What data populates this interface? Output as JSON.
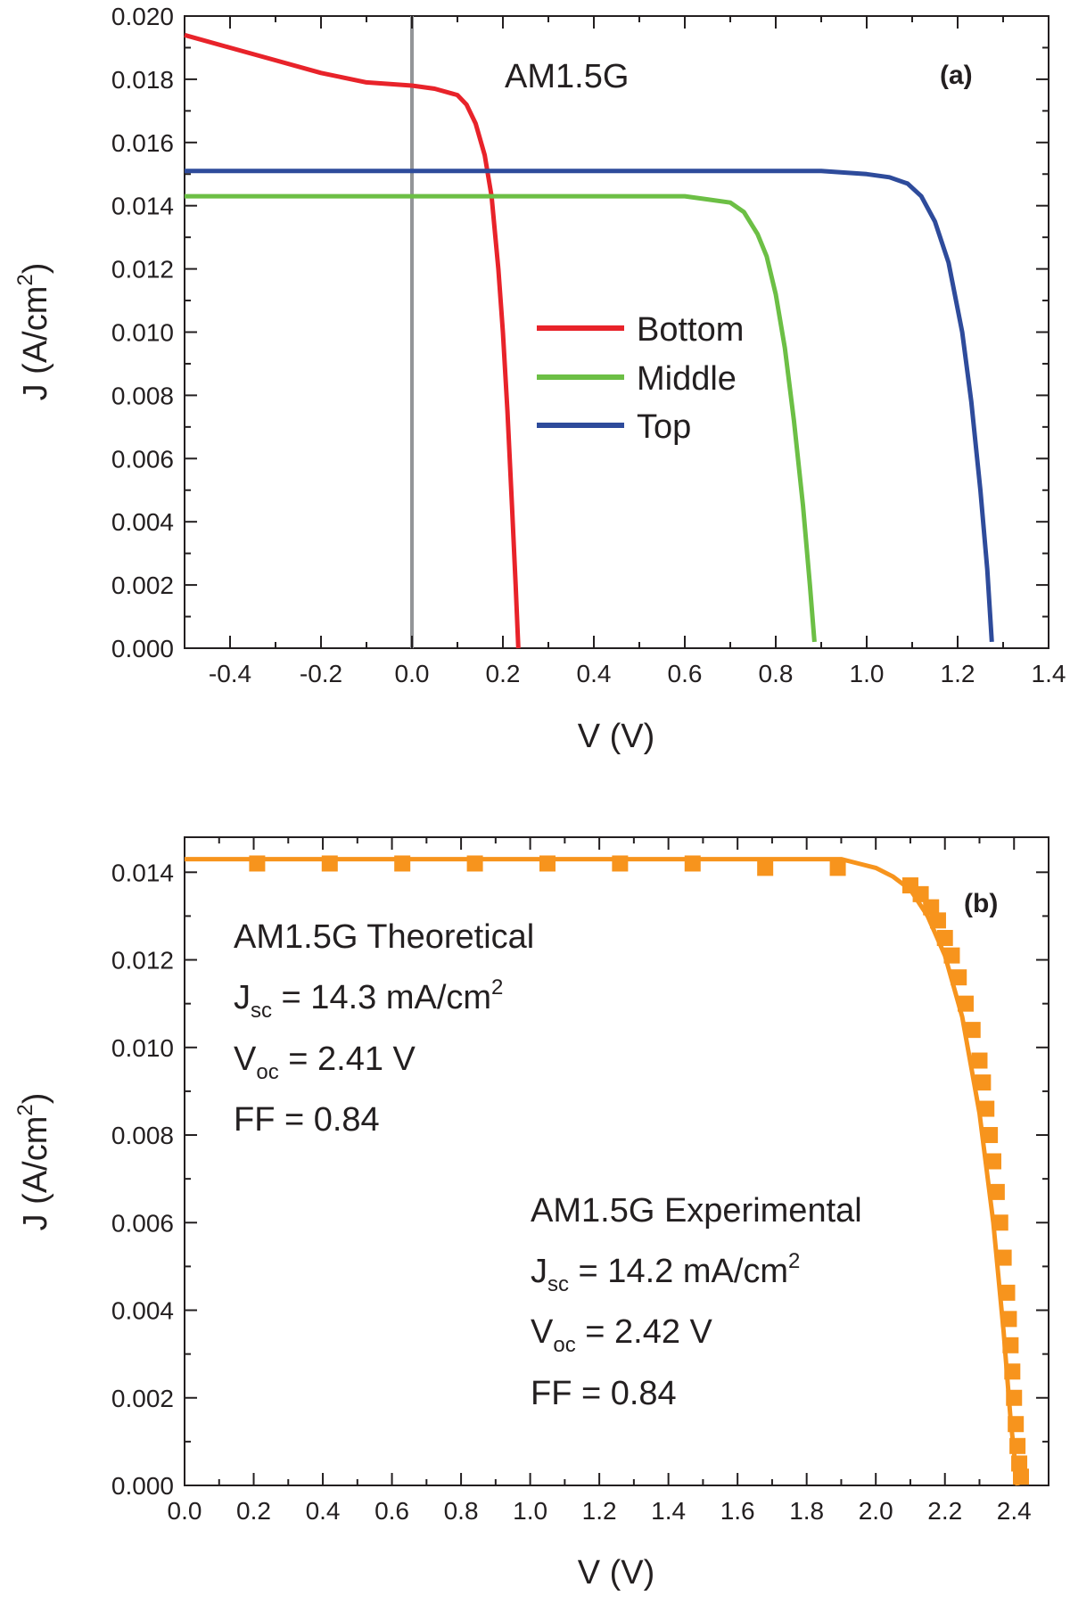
{
  "chart_data": [
    {
      "panel": "(a)",
      "type": "line",
      "title": "",
      "annotation": "AM1.5G",
      "xlabel": "V (V)",
      "ylabel": "J (A/cm²)",
      "ylabel_main": "J (A/cm",
      "ylabel_sup": "2",
      "ylabel_end": ")",
      "xlim": [
        -0.5,
        1.4
      ],
      "ylim": [
        0,
        0.02
      ],
      "xticks": [
        -0.4,
        -0.2,
        0.0,
        0.2,
        0.4,
        0.6,
        0.8,
        1.0,
        1.2,
        1.4
      ],
      "xtick_labels": [
        "-0.4",
        "-0.2",
        "0.0",
        "0.2",
        "0.4",
        "0.6",
        "0.8",
        "1.0",
        "1.2",
        "1.4"
      ],
      "yticks": [
        0,
        0.002,
        0.004,
        0.006,
        0.008,
        0.01,
        0.012,
        0.014,
        0.016,
        0.018,
        0.02
      ],
      "ytick_labels": [
        "0.000",
        "0.002",
        "0.004",
        "0.006",
        "0.008",
        "0.010",
        "0.012",
        "0.014",
        "0.016",
        "0.018",
        "0.020"
      ],
      "vline_x": 0.0,
      "legend_position": "center",
      "series": [
        {
          "name": "Bottom",
          "color": "#e8232a",
          "points": [
            [
              -0.5,
              0.0194
            ],
            [
              -0.4,
              0.019
            ],
            [
              -0.3,
              0.0186
            ],
            [
              -0.2,
              0.0182
            ],
            [
              -0.1,
              0.0179
            ],
            [
              0.0,
              0.0178
            ],
            [
              0.05,
              0.0177
            ],
            [
              0.1,
              0.0175
            ],
            [
              0.12,
              0.0172
            ],
            [
              0.14,
              0.0166
            ],
            [
              0.16,
              0.0156
            ],
            [
              0.175,
              0.0143
            ],
            [
              0.19,
              0.012
            ],
            [
              0.2,
              0.01
            ],
            [
              0.21,
              0.0075
            ],
            [
              0.22,
              0.0045
            ],
            [
              0.228,
              0.002
            ],
            [
              0.234,
              0.0
            ]
          ]
        },
        {
          "name": "Middle",
          "color": "#6cbf45",
          "points": [
            [
              -0.5,
              0.0143
            ],
            [
              0.0,
              0.0143
            ],
            [
              0.3,
              0.0143
            ],
            [
              0.5,
              0.0143
            ],
            [
              0.6,
              0.0143
            ],
            [
              0.65,
              0.0142
            ],
            [
              0.7,
              0.0141
            ],
            [
              0.73,
              0.0138
            ],
            [
              0.76,
              0.0131
            ],
            [
              0.78,
              0.0124
            ],
            [
              0.8,
              0.0112
            ],
            [
              0.82,
              0.0095
            ],
            [
              0.84,
              0.0072
            ],
            [
              0.86,
              0.0045
            ],
            [
              0.875,
              0.002
            ],
            [
              0.885,
              0.0002
            ]
          ]
        },
        {
          "name": "Top",
          "color": "#2e4b9b",
          "points": [
            [
              -0.5,
              0.0151
            ],
            [
              0.0,
              0.0151
            ],
            [
              0.5,
              0.0151
            ],
            [
              0.9,
              0.0151
            ],
            [
              1.0,
              0.015
            ],
            [
              1.05,
              0.0149
            ],
            [
              1.09,
              0.0147
            ],
            [
              1.12,
              0.0143
            ],
            [
              1.15,
              0.0135
            ],
            [
              1.18,
              0.0122
            ],
            [
              1.21,
              0.01
            ],
            [
              1.23,
              0.0078
            ],
            [
              1.25,
              0.005
            ],
            [
              1.265,
              0.0025
            ],
            [
              1.275,
              0.0002
            ]
          ]
        }
      ]
    },
    {
      "panel": "(b)",
      "type": "line",
      "title": "",
      "xlabel": "V (V)",
      "ylabel": "J (A/cm²)",
      "ylabel_main": "J (A/cm",
      "ylabel_sup": "2",
      "ylabel_end": ")",
      "xlim": [
        0.0,
        2.5
      ],
      "ylim": [
        0,
        0.0148
      ],
      "xticks": [
        0.0,
        0.2,
        0.4,
        0.6,
        0.8,
        1.0,
        1.2,
        1.4,
        1.6,
        1.8,
        2.0,
        2.2,
        2.4
      ],
      "xtick_labels": [
        "0.0",
        "0.2",
        "0.4",
        "0.6",
        "0.8",
        "1.0",
        "1.2",
        "1.4",
        "1.6",
        "1.8",
        "2.0",
        "2.2",
        "2.4"
      ],
      "yticks": [
        0,
        0.002,
        0.004,
        0.006,
        0.008,
        0.01,
        0.012,
        0.014
      ],
      "ytick_labels": [
        "0.000",
        "0.002",
        "0.004",
        "0.006",
        "0.008",
        "0.010",
        "0.012",
        "0.014"
      ],
      "theoretical": {
        "title": "AM1.5G Theoretical",
        "jsc_pre": "J",
        "jsc_sub": "sc",
        "jsc_val": " = 14.3 mA/cm",
        "jsc_sup": "2",
        "voc_pre": "V",
        "voc_sub": "oc",
        "voc_val": " = 2.41 V",
        "ff": "FF = 0.84"
      },
      "experimental": {
        "title": "AM1.5G Experimental",
        "jsc_pre": "J",
        "jsc_sub": "sc",
        "jsc_val": " = 14.2 mA/cm",
        "jsc_sup": "2",
        "voc_pre": "V",
        "voc_sub": "oc",
        "voc_val": " = 2.42 V",
        "ff": "FF = 0.84"
      },
      "series": [
        {
          "name": "Theoretical",
          "style": "line",
          "color": "#f7941d",
          "points": [
            [
              0.0,
              0.0143
            ],
            [
              0.5,
              0.0143
            ],
            [
              1.0,
              0.0143
            ],
            [
              1.5,
              0.0143
            ],
            [
              1.9,
              0.0143
            ],
            [
              1.95,
              0.0142
            ],
            [
              2.0,
              0.0141
            ],
            [
              2.05,
              0.0139
            ],
            [
              2.1,
              0.0136
            ],
            [
              2.15,
              0.013
            ],
            [
              2.2,
              0.0121
            ],
            [
              2.25,
              0.0107
            ],
            [
              2.3,
              0.0085
            ],
            [
              2.34,
              0.006
            ],
            [
              2.37,
              0.0035
            ],
            [
              2.39,
              0.0015
            ],
            [
              2.41,
              0.0
            ]
          ]
        },
        {
          "name": "Experimental",
          "style": "markers",
          "marker": "square",
          "color": "#f7941d",
          "points": [
            [
              0.21,
              0.0142
            ],
            [
              0.42,
              0.0142
            ],
            [
              0.63,
              0.0142
            ],
            [
              0.84,
              0.0142
            ],
            [
              1.05,
              0.0142
            ],
            [
              1.26,
              0.0142
            ],
            [
              1.47,
              0.0142
            ],
            [
              1.68,
              0.0141
            ],
            [
              1.89,
              0.0141
            ],
            [
              2.1,
              0.0137
            ],
            [
              2.13,
              0.0135
            ],
            [
              2.16,
              0.0132
            ],
            [
              2.18,
              0.0129
            ],
            [
              2.2,
              0.0125
            ],
            [
              2.22,
              0.0121
            ],
            [
              2.24,
              0.0116
            ],
            [
              2.26,
              0.011
            ],
            [
              2.28,
              0.0104
            ],
            [
              2.3,
              0.0097
            ],
            [
              2.31,
              0.0092
            ],
            [
              2.32,
              0.0086
            ],
            [
              2.33,
              0.008
            ],
            [
              2.34,
              0.0074
            ],
            [
              2.35,
              0.0067
            ],
            [
              2.36,
              0.006
            ],
            [
              2.37,
              0.0052
            ],
            [
              2.38,
              0.0044
            ],
            [
              2.385,
              0.0038
            ],
            [
              2.39,
              0.0032
            ],
            [
              2.395,
              0.0026
            ],
            [
              2.4,
              0.002
            ],
            [
              2.405,
              0.0014
            ],
            [
              2.41,
              0.0009
            ],
            [
              2.415,
              0.0005
            ],
            [
              2.42,
              0.0002
            ]
          ]
        }
      ]
    }
  ]
}
